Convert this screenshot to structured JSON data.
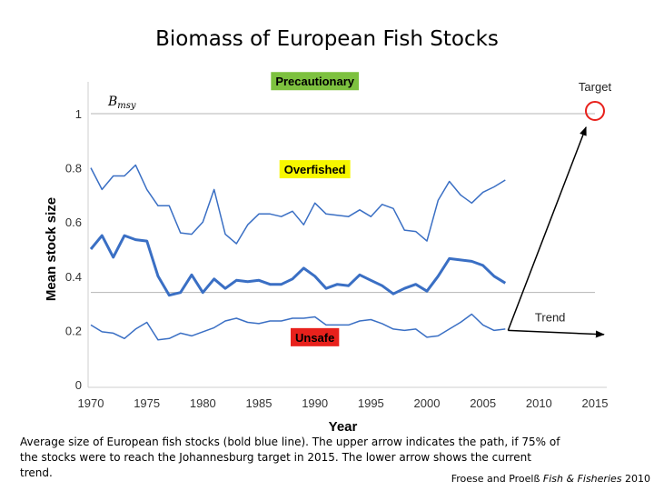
{
  "title": "Biomass of European Fish Stocks",
  "caption": "Average size of European fish stocks (bold blue line). The upper arrow indicates the path, if 75% of the stocks were to reach the Johannesburg target in 2015. The lower arrow shows the current trend.",
  "credit": {
    "authors": "Froese and Proelß",
    "journal": "Fish & Fisheries",
    "year": "2010"
  },
  "colors": {
    "series": "#3a6fc4",
    "precautionary": "#7dc13f",
    "overfished": "#f7f700",
    "unsafe": "#e8211c",
    "target_circle": "#e8211c",
    "reference_line": "#b5b5b5",
    "arrow": "#000000"
  },
  "chart_data": {
    "type": "line",
    "title": "Biomass of European Fish Stocks",
    "xlabel": "Year",
    "ylabel": "Mean stock size",
    "xlim": [
      1970,
      2015
    ],
    "ylim": [
      0,
      1.05
    ],
    "xticks": [
      "1970",
      "1975",
      "1980",
      "1985",
      "1990",
      "1995",
      "2000",
      "2005",
      "2010",
      "2015"
    ],
    "yticks": [
      "0",
      "0.2",
      "0.4",
      "0.6",
      "0.8",
      "1"
    ],
    "x": [
      1970,
      1971,
      1972,
      1973,
      1974,
      1975,
      1976,
      1977,
      1978,
      1979,
      1980,
      1981,
      1982,
      1983,
      1984,
      1985,
      1986,
      1987,
      1988,
      1989,
      1990,
      1991,
      1992,
      1993,
      1994,
      1995,
      1996,
      1997,
      1998,
      1999,
      2000,
      2001,
      2002,
      2003,
      2004,
      2005,
      2006,
      2007
    ],
    "series": [
      {
        "name": "Upper",
        "values": [
          0.8,
          0.72,
          0.77,
          0.77,
          0.81,
          0.72,
          0.66,
          0.66,
          0.56,
          0.555,
          0.6,
          0.72,
          0.555,
          0.52,
          0.59,
          0.63,
          0.63,
          0.62,
          0.64,
          0.59,
          0.67,
          0.63,
          0.625,
          0.62,
          0.645,
          0.62,
          0.665,
          0.65,
          0.57,
          0.565,
          0.53,
          0.68,
          0.75,
          0.7,
          0.67,
          0.71,
          0.73,
          0.755
        ]
      },
      {
        "name": "Mean stock size",
        "bold": true,
        "values": [
          0.5,
          0.55,
          0.47,
          0.55,
          0.535,
          0.53,
          0.4,
          0.33,
          0.34,
          0.405,
          0.34,
          0.39,
          0.355,
          0.385,
          0.38,
          0.385,
          0.37,
          0.37,
          0.39,
          0.43,
          0.4,
          0.355,
          0.37,
          0.365,
          0.405,
          0.385,
          0.365,
          0.335,
          0.355,
          0.37,
          0.345,
          0.4,
          0.465,
          0.46,
          0.455,
          0.44,
          0.4,
          0.375
        ]
      },
      {
        "name": "Lower",
        "values": [
          0.22,
          0.195,
          0.19,
          0.17,
          0.205,
          0.23,
          0.165,
          0.17,
          0.19,
          0.18,
          0.195,
          0.21,
          0.235,
          0.245,
          0.23,
          0.225,
          0.235,
          0.235,
          0.245,
          0.245,
          0.25,
          0.22,
          0.22,
          0.22,
          0.235,
          0.24,
          0.225,
          0.205,
          0.2,
          0.205,
          0.175,
          0.18,
          0.205,
          0.23,
          0.26,
          0.22,
          0.2,
          0.205
        ]
      }
    ],
    "reference_lines": [
      {
        "label": "Bmsy",
        "y": 1.0
      },
      {
        "y": 0.34
      }
    ],
    "zone_labels": [
      {
        "text": "Precautionary",
        "x": 1990,
        "y": 1.12,
        "color": "#7dc13f"
      },
      {
        "text": "Overfished",
        "x": 1990,
        "y": 0.795,
        "color": "#f7f700"
      },
      {
        "text": "Unsafe",
        "x": 1990,
        "y": 0.175,
        "color": "#e8211c"
      }
    ],
    "annotations": [
      {
        "text": "Target",
        "x": 2015,
        "y": 1.1
      },
      {
        "text": "Trend",
        "x": 2011,
        "y": 0.25
      }
    ],
    "target_point": {
      "x": 2015,
      "y": 1.0
    },
    "arrows": [
      {
        "name": "upper-arrow",
        "from": [
          2007,
          0.2
        ],
        "to": [
          2014.2,
          0.95
        ]
      },
      {
        "name": "lower-arrow",
        "from": [
          2007,
          0.2
        ],
        "to": [
          2015.8,
          0.185
        ]
      }
    ],
    "bmsy": {
      "main": "B",
      "sub": "msy"
    }
  }
}
